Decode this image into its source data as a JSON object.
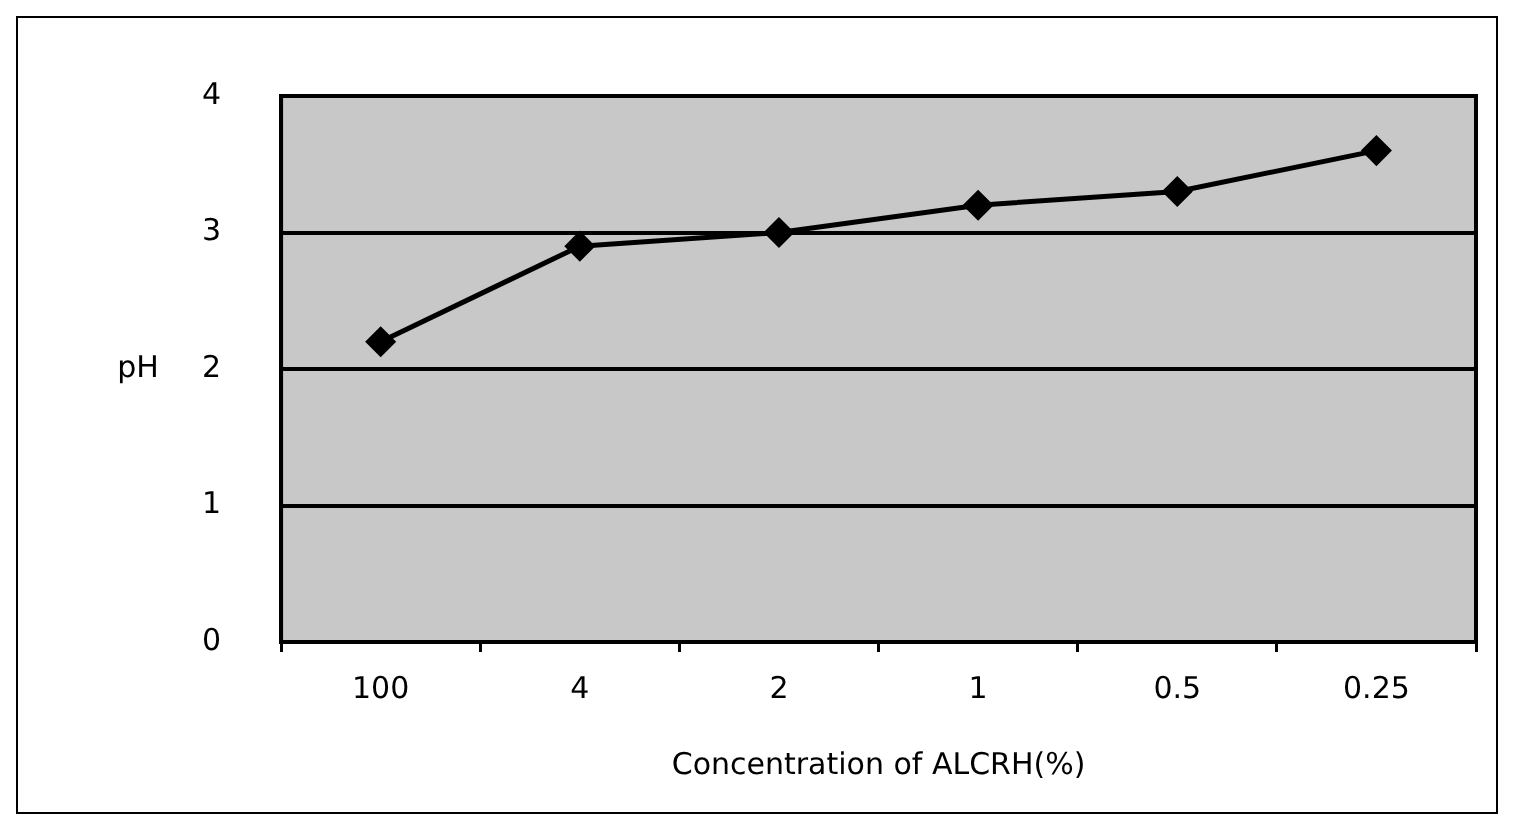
{
  "chart_data": {
    "type": "line",
    "xlabel": "Concentration of ALCRH(%)",
    "ylabel": "pH",
    "categories": [
      "100",
      "4",
      "2",
      "1",
      "0.5",
      "0.25"
    ],
    "series": [
      {
        "color": "#000000",
        "values": [
          2.2,
          2.9,
          3.0,
          3.2,
          3.3,
          3.6
        ]
      }
    ],
    "ylim": [
      0,
      4
    ],
    "yticks": [
      0,
      1,
      2,
      3,
      4
    ],
    "grid": "y",
    "legend": false,
    "marker": "diamond",
    "line_style": "solid"
  }
}
